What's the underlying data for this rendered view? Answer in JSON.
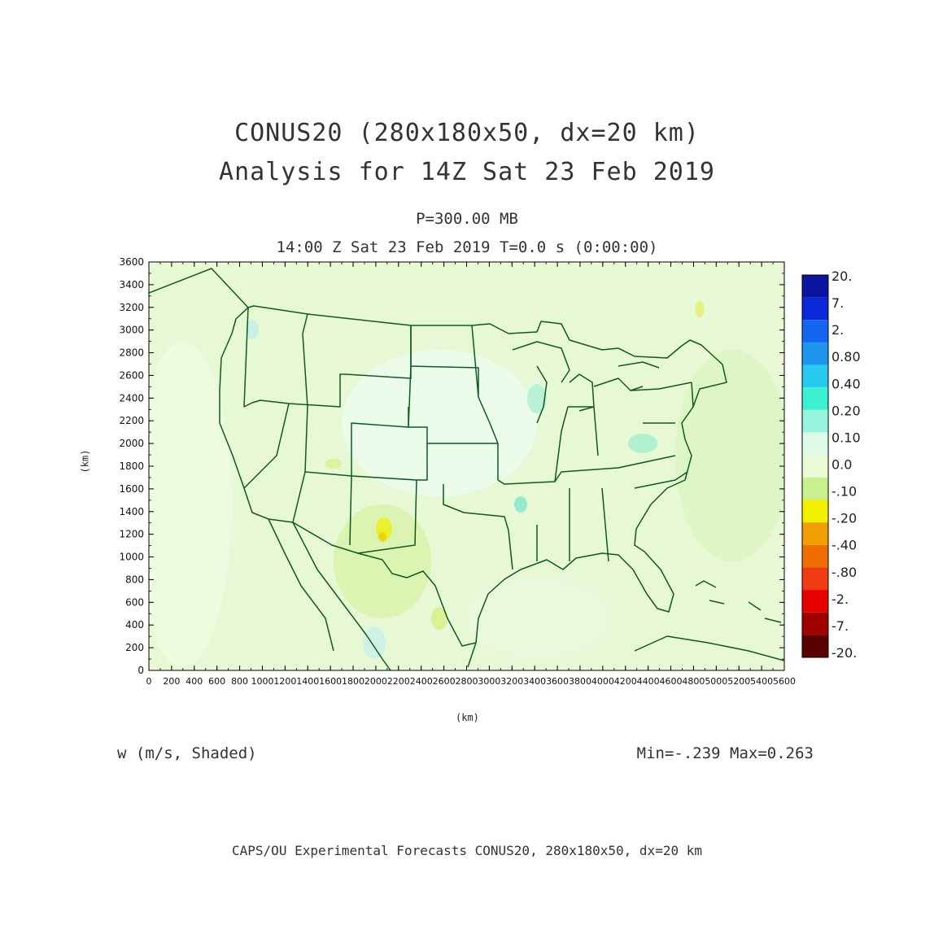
{
  "title": {
    "line1": "CONUS20 (280x180x50, dx=20 km)",
    "line2": "Analysis for 14Z Sat 23 Feb 2019"
  },
  "subtitle": {
    "level": "P=300.00 MB",
    "time": "14:00 Z Sat 23 Feb 2019   T=0.0 s (0:00:00)"
  },
  "axes": {
    "x_unit_label": "(km)",
    "y_unit_label": "(km)",
    "x_ticks": [
      "0",
      "200",
      "400",
      "600",
      "800",
      "1000",
      "1200",
      "1400",
      "1600",
      "1800",
      "2000",
      "2200",
      "2400",
      "2600",
      "2800",
      "3000",
      "3200",
      "3400",
      "3600",
      "3800",
      "4000",
      "4200",
      "4400",
      "4600",
      "4800",
      "5000",
      "5200",
      "5400",
      "5600"
    ],
    "y_ticks": [
      "0",
      "200",
      "400",
      "600",
      "800",
      "1000",
      "1200",
      "1400",
      "1600",
      "1800",
      "2000",
      "2200",
      "2400",
      "2600",
      "2800",
      "3000",
      "3200",
      "3400",
      "3600"
    ],
    "x_range_km": [
      0,
      5600
    ],
    "y_range_km": [
      0,
      3600
    ]
  },
  "colorbar": {
    "labels": [
      "20.",
      "7.",
      "2.",
      "0.80",
      "0.40",
      "0.20",
      "0.10",
      "0.0",
      "-.10",
      "-.20",
      "-.40",
      "-.80",
      "-2.",
      "-7.",
      "-20."
    ],
    "colors": [
      "#0a14a0",
      "#0a28d8",
      "#1466f0",
      "#1e96f0",
      "#28c8f0",
      "#3cf0d2",
      "#96f5dc",
      "#dcfae6",
      "#eafbd6",
      "#c8f08c",
      "#f0f000",
      "#f0a000",
      "#f06e00",
      "#f03c14",
      "#e60000",
      "#a00000",
      "#5a0000"
    ]
  },
  "field": {
    "variable_label": "w (m/s, Shaded)",
    "minmax_label": "Min=-.239 Max=0.263"
  },
  "footer": "CAPS/OU Experimental Forecasts  CONUS20, 280x180x50, dx=20 km",
  "map_colors": {
    "background": "#e6f8d4",
    "boundary": "#0f5a1e",
    "axis": "#000000"
  }
}
